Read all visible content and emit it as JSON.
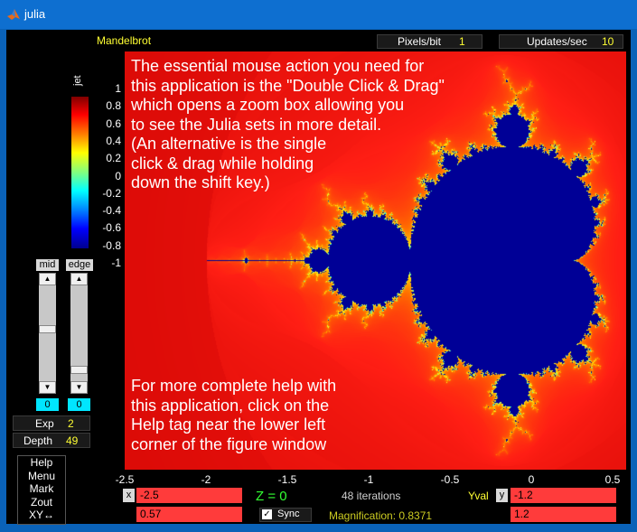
{
  "window": {
    "title": "julia"
  },
  "plot_title": "Mandelbrot",
  "pixels_per_bit": {
    "label": "Pixels/bit",
    "value": "1"
  },
  "updates_per_sec": {
    "label": "Updates/sec",
    "value": "10"
  },
  "colorbar": {
    "label": "jet",
    "ticks": [
      "1",
      "0.8",
      "0.6",
      "0.4",
      "0.2",
      "0",
      "-0.2",
      "-0.4",
      "-0.6",
      "-0.8",
      "-1"
    ]
  },
  "sliders": {
    "mid_label": "mid",
    "edge_label": "edge",
    "mid_value": "0",
    "edge_value": "0",
    "mid_level": 0.45,
    "edge_level": 0.92
  },
  "exp": {
    "label": "Exp",
    "value": "2"
  },
  "depth": {
    "label": "Depth",
    "value": "49"
  },
  "help_menu": [
    "Help",
    "Menu",
    "Mark",
    "Zout",
    "XY↔"
  ],
  "x_ticks": [
    "-2.5",
    "-2",
    "-1.5",
    "-1",
    "-0.5",
    "0",
    "0.5"
  ],
  "help_text_top": [
    "The essential mouse action you need for",
    "this application is the \"Double Click & Drag\"",
    "which opens a zoom box allowing you",
    "to see the Julia sets in more detail.",
    "(An alternative is the single",
    "click & drag while holding",
    "down the shift key.)"
  ],
  "help_text_bottom": [
    "For more complete help with",
    "this application, click on the",
    "Help tag near the lower left",
    "corner of the figure window"
  ],
  "controls": {
    "x_label": "x",
    "x_min": "-2.5",
    "x_max": "0.57",
    "z_label": "Z = 0",
    "iterations": "48 iterations",
    "sync_label": "Sync",
    "sync_checked": true,
    "magnification": "Magnification: 0.8371",
    "yval_label": "Yval",
    "y_label": "y",
    "y_min": "-1.2",
    "y_max": "1.2"
  },
  "colors": {
    "accent": "#ffff33",
    "field": "#ff3b3b",
    "cyan": "#00e5ff",
    "z_green": "#33ff33"
  }
}
